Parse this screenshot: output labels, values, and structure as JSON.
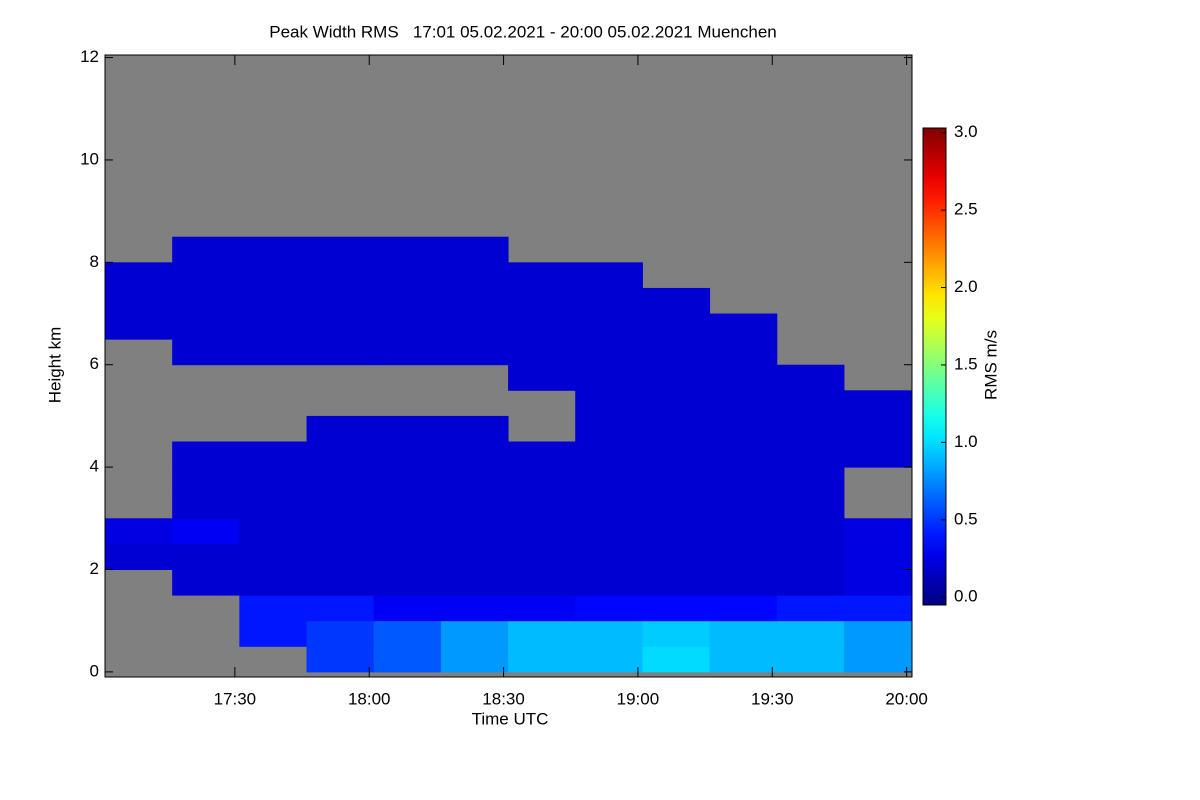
{
  "chart_data": {
    "type": "heatmap",
    "title": "Peak Width RMS   17:01 05.02.2021 - 20:00 05.02.2021 Muenchen",
    "x_label": "Time UTC",
    "y_label": "Height km",
    "colorbar_label": "RMS m/s",
    "background_color": "#808080",
    "xbins": [
      17.0167,
      17.2667,
      17.5167,
      17.7667,
      18.0167,
      18.2667,
      18.5167,
      18.7667,
      19.0167,
      19.2667,
      19.5167,
      19.7667,
      20.0167
    ],
    "ybins": [
      0,
      0.5,
      1,
      1.5,
      2,
      2.5,
      3,
      3.5,
      4,
      4.5,
      5,
      5.5,
      6,
      6.5,
      7,
      7.5,
      8,
      8.5
    ],
    "values": [
      [
        null,
        null,
        null,
        0.5,
        0.6,
        0.8,
        0.9,
        0.9,
        1.0,
        0.9,
        0.9,
        0.8
      ],
      [
        null,
        null,
        0.4,
        0.5,
        0.6,
        0.8,
        0.9,
        0.9,
        0.95,
        0.9,
        0.9,
        0.8
      ],
      [
        null,
        null,
        0.4,
        0.4,
        0.3,
        0.3,
        0.3,
        0.35,
        0.35,
        0.35,
        0.4,
        0.4
      ],
      [
        null,
        0.2,
        0.2,
        0.2,
        0.2,
        0.2,
        0.2,
        0.2,
        0.2,
        0.2,
        0.2,
        0.25
      ],
      [
        0.2,
        0.2,
        0.2,
        0.2,
        0.2,
        0.2,
        0.2,
        0.2,
        0.2,
        0.2,
        0.2,
        0.25
      ],
      [
        0.25,
        0.3,
        0.2,
        0.2,
        0.2,
        0.2,
        0.2,
        0.2,
        0.2,
        0.2,
        0.2,
        0.25
      ],
      [
        null,
        0.2,
        0.2,
        0.2,
        0.2,
        0.2,
        0.2,
        0.2,
        0.2,
        0.2,
        0.2,
        null
      ],
      [
        null,
        0.2,
        0.2,
        0.2,
        0.2,
        0.2,
        0.2,
        0.2,
        0.2,
        0.2,
        0.2,
        null
      ],
      [
        null,
        0.2,
        0.2,
        0.2,
        0.2,
        0.2,
        0.2,
        0.2,
        0.2,
        0.2,
        0.2,
        0.2
      ],
      [
        null,
        null,
        null,
        0.2,
        0.2,
        0.2,
        null,
        0.2,
        0.2,
        0.2,
        0.2,
        0.2
      ],
      [
        null,
        null,
        null,
        null,
        null,
        null,
        null,
        0.2,
        0.2,
        0.2,
        0.2,
        0.2
      ],
      [
        null,
        null,
        null,
        null,
        null,
        null,
        0.2,
        0.2,
        0.2,
        0.2,
        0.2,
        null
      ],
      [
        null,
        0.2,
        0.2,
        0.2,
        0.2,
        0.2,
        0.2,
        0.2,
        0.2,
        0.2,
        null,
        null
      ],
      [
        0.2,
        0.2,
        0.2,
        0.2,
        0.2,
        0.2,
        0.2,
        0.2,
        0.2,
        0.2,
        null,
        null
      ],
      [
        0.2,
        0.2,
        0.2,
        0.2,
        0.2,
        0.2,
        0.2,
        0.2,
        0.2,
        null,
        null,
        null
      ],
      [
        0.2,
        0.2,
        0.2,
        0.2,
        0.2,
        0.2,
        0.2,
        0.2,
        null,
        null,
        null,
        null
      ],
      [
        null,
        0.2,
        0.2,
        0.2,
        0.2,
        0.2,
        null,
        null,
        null,
        null,
        null,
        null
      ]
    ],
    "xlim": [
      17.0167,
      20.02
    ],
    "xticks": [
      {
        "value": 17.5,
        "label": "17:30"
      },
      {
        "value": 18,
        "label": "18:00"
      },
      {
        "value": 18.5,
        "label": "18:30"
      },
      {
        "value": 19,
        "label": "19:00"
      },
      {
        "value": 19.5,
        "label": "19:30"
      },
      {
        "value": 20,
        "label": "20:00"
      }
    ],
    "ylim": [
      -0.1,
      12.05
    ],
    "yticks": [
      0,
      2,
      4,
      6,
      8,
      10,
      12
    ],
    "clim": [
      -0.05,
      3.03
    ],
    "cticks": [
      {
        "value": 0,
        "label": "0.0"
      },
      {
        "value": 0.5,
        "label": "0.5"
      },
      {
        "value": 1,
        "label": "1.0"
      },
      {
        "value": 1.5,
        "label": "1.5"
      },
      {
        "value": 2,
        "label": "2.0"
      },
      {
        "value": 2.5,
        "label": "2.5"
      },
      {
        "value": 3,
        "label": "3.0"
      }
    ],
    "colormap": "jet"
  }
}
